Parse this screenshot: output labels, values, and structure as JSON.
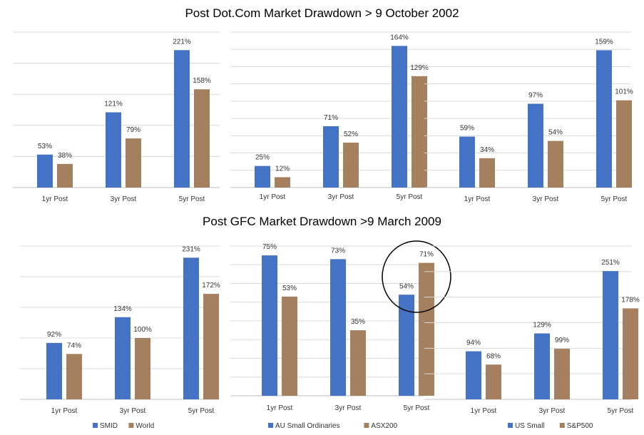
{
  "titles": {
    "top": "Post Dot.Com Market Drawdown > 9 October 2002",
    "bottom": "Post GFC Market Drawdown >9 March 2009"
  },
  "colors": {
    "series1": "#4472c4",
    "series2": "#a5805e",
    "grid": "#d9d9d9",
    "axis": "#bfbfbf"
  },
  "chart_data": [
    {
      "type": "bar",
      "categories": [
        "1yr Post",
        "3yr Post",
        "5yr Post"
      ],
      "series": [
        {
          "values": [
            53,
            121,
            221
          ],
          "labels": [
            "53%",
            "121%",
            "221%"
          ]
        },
        {
          "values": [
            38,
            79,
            158
          ],
          "labels": [
            "38%",
            "79%",
            "158%"
          ]
        }
      ],
      "ylim": [
        0,
        250
      ],
      "gridlines": 6,
      "legend": []
    },
    {
      "type": "bar",
      "categories": [
        "1yr Post",
        "3yr Post",
        "5yr Post"
      ],
      "series": [
        {
          "values": [
            25,
            71,
            164
          ],
          "labels": [
            "25%",
            "71%",
            "164%"
          ]
        },
        {
          "values": [
            12,
            52,
            129
          ],
          "labels": [
            "12%",
            "52%",
            "129%"
          ]
        }
      ],
      "ylim": [
        0,
        180
      ],
      "gridlines": 10,
      "legend": []
    },
    {
      "type": "bar",
      "categories": [
        "1yr Post",
        "3yr Post",
        "5yr Post"
      ],
      "series": [
        {
          "values": [
            59,
            97,
            159
          ],
          "labels": [
            "59%",
            "97%",
            "159%"
          ]
        },
        {
          "values": [
            34,
            54,
            101
          ],
          "labels": [
            "34%",
            "54%",
            "101%"
          ]
        }
      ],
      "ylim": [
        0,
        180
      ],
      "gridlines": 10,
      "legend": []
    },
    {
      "type": "bar",
      "categories": [
        "1yr Post",
        "3yr Post",
        "5yr Post"
      ],
      "series": [
        {
          "name": "SMID",
          "values": [
            92,
            134,
            231
          ],
          "labels": [
            "92%",
            "134%",
            "231%"
          ]
        },
        {
          "name": "World",
          "values": [
            74,
            100,
            172
          ],
          "labels": [
            "74%",
            "100%",
            "172%"
          ]
        }
      ],
      "ylim": [
        0,
        250
      ],
      "gridlines": 6,
      "legend": [
        "SMID",
        "World"
      ]
    },
    {
      "type": "bar",
      "categories": [
        "1yr Post",
        "3yr Post",
        "5yr Post"
      ],
      "series": [
        {
          "name": "AU Small Ordinaries",
          "values": [
            75,
            73,
            54
          ],
          "labels": [
            "75%",
            "73%",
            "54%"
          ]
        },
        {
          "name": "ASX200",
          "values": [
            53,
            35,
            71
          ],
          "labels": [
            "53%",
            "35%",
            "71%"
          ]
        }
      ],
      "ylim": [
        0,
        80
      ],
      "gridlines": 9,
      "legend": [
        "AU Small Ordinaries",
        "ASX200"
      ],
      "annotation": "circle around 5yr Post bars"
    },
    {
      "type": "bar",
      "categories": [
        "1yr Post",
        "3yr Post",
        "5yr Post"
      ],
      "series": [
        {
          "name": "US Small",
          "values": [
            94,
            129,
            251
          ],
          "labels": [
            "94%",
            "129%",
            "251%"
          ]
        },
        {
          "name": "S&P500",
          "values": [
            68,
            99,
            178
          ],
          "labels": [
            "68%",
            "99%",
            "178%"
          ]
        }
      ],
      "ylim": [
        0,
        300
      ],
      "gridlines": 7,
      "legend": [
        "US Small",
        "S&P500"
      ]
    }
  ]
}
